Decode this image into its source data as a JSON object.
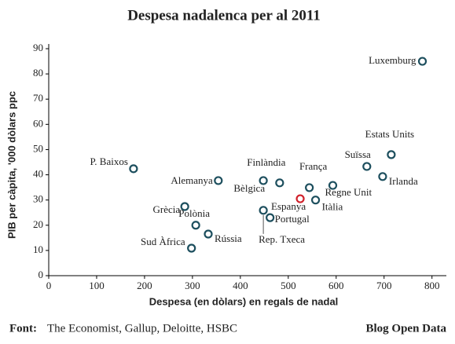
{
  "chart_data": {
    "type": "scatter",
    "title": "Despesa nadalenca per al 2011",
    "xlabel": "Despesa (en dòlars) en regals de nadal",
    "ylabel": "PIB per càpita, '000 dòlars ppc",
    "point_labels": [
      "Luxemburg",
      "Estats Units",
      "Suïssa",
      "Irlanda",
      "Regne Unit",
      "França",
      "Itàlia",
      "Espanya",
      "Finlàndia",
      "Bèlgica",
      "Portugal",
      "Rep. Txeca",
      "Alemanya",
      "P. Baixos",
      "Grècia",
      "Polònia",
      "Rússia",
      "Sud Àfrica"
    ],
    "x": [
      780,
      715,
      664,
      697,
      593,
      544,
      557,
      525,
      482,
      448,
      462,
      448,
      354,
      177,
      284,
      307,
      333,
      298
    ],
    "values": [
      85,
      48,
      43.3,
      39.3,
      35.8,
      34.9,
      30,
      30.5,
      36.8,
      37.7,
      23,
      25.9,
      37.7,
      42.4,
      27.4,
      20,
      16.5,
      10.9
    ],
    "point_colors": [
      "#1d4f5e",
      "#1d4f5e",
      "#1d4f5e",
      "#1d4f5e",
      "#1d4f5e",
      "#1d4f5e",
      "#1d4f5e",
      "#d0202a",
      "#1d4f5e",
      "#1d4f5e",
      "#1d4f5e",
      "#1d4f5e",
      "#1d4f5e",
      "#1d4f5e",
      "#1d4f5e",
      "#1d4f5e",
      "#1d4f5e",
      "#1d4f5e"
    ],
    "xlim": [
      0,
      830
    ],
    "xticks": [
      0,
      100,
      200,
      300,
      400,
      500,
      600,
      700,
      800
    ],
    "ylim": [
      0,
      90
    ],
    "yticks": [
      0,
      10,
      20,
      30,
      40,
      50,
      60,
      70,
      80,
      90
    ],
    "grid": false,
    "source_label": "Font:",
    "source": "The Economist, Gallup, Deloitte, HSBC",
    "credit": "Blog Open Data"
  }
}
